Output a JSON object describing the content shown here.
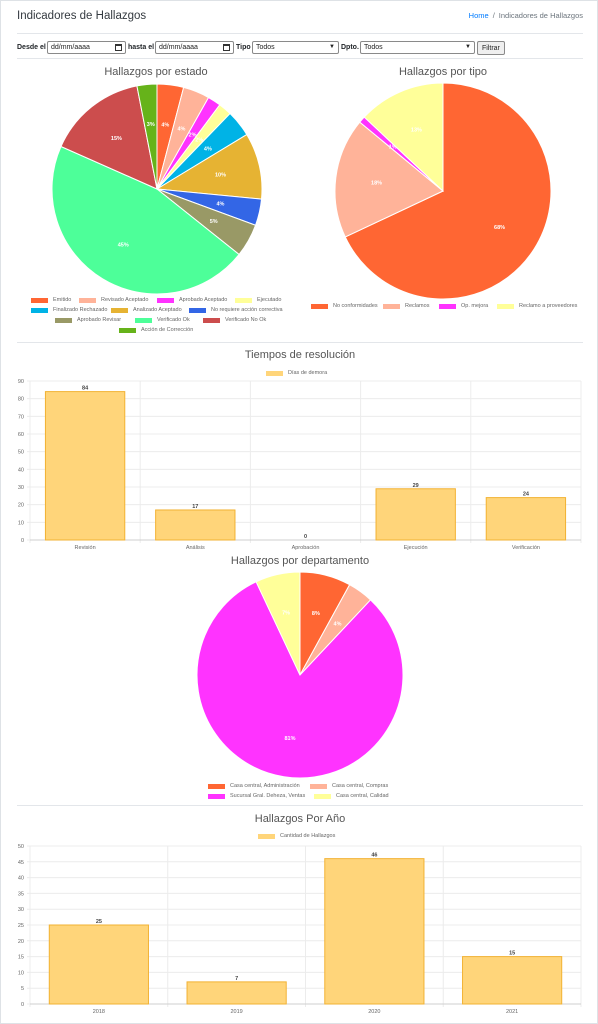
{
  "header": {
    "title": "Indicadores de Hallazgos",
    "breadcrumb": {
      "home": "Home",
      "separator": "/",
      "current": "Indicadores de Hallazgos"
    }
  },
  "filters": {
    "from_label": "Desde el",
    "from_value": "dd/mm/aaaa",
    "to_label": "hasta el",
    "to_value": "dd/mm/aaaa",
    "type_label": "Tipo",
    "type_value": "Todos",
    "dept_label": "Dpto.",
    "dept_value": "Todos",
    "filter_button": "Filtrar"
  },
  "chart_data": [
    {
      "type": "pie",
      "title": "Hallazgos por estado",
      "labels": [
        "Emitido",
        "Revisado Aceptado",
        "Aprobado Aceptado",
        "Ejecutado",
        "Finalizado Rechazado",
        "Analizado Aceptado",
        "No requiere acción correctiva",
        "Aprobado Revisar",
        "Verificado Ok",
        "Verificado No Ok",
        "Acción de Corrección"
      ],
      "values": [
        4,
        4,
        2,
        2,
        4,
        10,
        4,
        5,
        45,
        15,
        3
      ],
      "data_labels": [
        "4%",
        "4%",
        "2%",
        "2%",
        "4%",
        "10%",
        "4%",
        "5%",
        "45%",
        "15%",
        "3%"
      ],
      "colors": [
        "#ff6633",
        "#ffb399",
        "#ff33ff",
        "#ffff99",
        "#00b3e6",
        "#e6b333",
        "#3366e6",
        "#999966",
        "#4dff99",
        "#cc4d4d",
        "#66b31a"
      ],
      "legend_position": "bottom"
    },
    {
      "type": "pie",
      "title": "Hallazgos por tipo",
      "labels": [
        "No conformidades",
        "Reclamos",
        "Op. mejora",
        "Reclamo a proveedores"
      ],
      "values": [
        68,
        18,
        1,
        13
      ],
      "data_labels": [
        "68%",
        "18%",
        "1%",
        "13%"
      ],
      "colors": [
        "#ff6633",
        "#ffb399",
        "#ff33ff",
        "#ffff99"
      ],
      "legend_position": "bottom"
    },
    {
      "type": "bar",
      "title": "Tiempos de resolución",
      "categories": [
        "Revisión",
        "Análisis",
        "Aprobación",
        "Ejecución",
        "Verificación"
      ],
      "series": [
        {
          "name": "Días de demora",
          "values": [
            84,
            17,
            0,
            29,
            24
          ]
        }
      ],
      "ylim": [
        0,
        90
      ],
      "yticks": [
        0,
        10,
        20,
        30,
        40,
        50,
        60,
        70,
        80,
        90
      ],
      "grid": true,
      "color": "#ffd57a",
      "legend_position": "top"
    },
    {
      "type": "pie",
      "title": "Hallazgos por departamento",
      "labels": [
        "Casa central, Administración",
        "Casa central, Compras",
        "Sucursal Gral. Deheza, Ventas",
        "Casa central, Calidad"
      ],
      "values": [
        8,
        4,
        81,
        7
      ],
      "data_labels": [
        "8%",
        "4%",
        "81%",
        "7%"
      ],
      "colors": [
        "#ff6633",
        "#ffb399",
        "#ff33ff",
        "#ffff99"
      ],
      "legend_position": "bottom"
    },
    {
      "type": "bar",
      "title": "Hallazgos Por Año",
      "categories": [
        "2018",
        "2019",
        "2020",
        "2021"
      ],
      "series": [
        {
          "name": "Cantidad de Hallazgos",
          "values": [
            25,
            7,
            46,
            15
          ]
        }
      ],
      "ylim": [
        0,
        50
      ],
      "yticks": [
        0,
        5,
        10,
        15,
        20,
        25,
        30,
        35,
        40,
        45,
        50
      ],
      "grid": true,
      "color": "#ffd57a",
      "legend_position": "top"
    }
  ]
}
